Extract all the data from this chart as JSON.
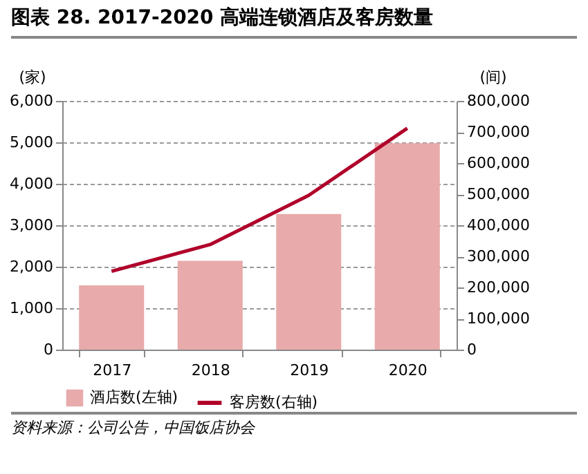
{
  "chart_data": {
    "type": "bar",
    "title": "图表 28. 2017-2020 高端连锁酒店及客房数量",
    "categories": [
      "2017",
      "2018",
      "2019",
      "2020"
    ],
    "series": [
      {
        "name": "酒店数(左轴)",
        "color": "#e8aaaa",
        "values": [
          1550,
          2140,
          3270,
          4980
        ]
      },
      {
        "name": "客房数(右轴)",
        "type": "line",
        "axis": "y2",
        "color": "#b0002a",
        "values": [
          252000,
          338000,
          496000,
          712000
        ]
      }
    ],
    "ylabel": "(家)",
    "y2label": "(间)",
    "ylim": [
      0,
      6000
    ],
    "yticks": [
      0,
      {
        "value": 1000,
        "label": "1,000"
      },
      {
        "value": 2000,
        "label": "2,000"
      },
      {
        "value": 3000,
        "label": "3,000"
      },
      {
        "value": 4000,
        "label": "4,000"
      },
      {
        "value": 5000,
        "label": "5,000"
      },
      {
        "value": 6000,
        "label": "6,000"
      }
    ],
    "y2lim": [
      0,
      800000
    ],
    "y2ticks": [
      0,
      {
        "value": 100000,
        "label": "100,000"
      },
      {
        "value": 200000,
        "label": "200,000"
      },
      {
        "value": 300000,
        "label": "300,000"
      },
      {
        "value": 400000,
        "label": "400,000"
      },
      {
        "value": 500000,
        "label": "500,000"
      },
      {
        "value": 600000,
        "label": "600,000"
      },
      {
        "value": 700000,
        "label": "700,000"
      },
      {
        "value": 800000,
        "label": "800,000"
      }
    ],
    "grid": "y",
    "legend": "bottom",
    "annotations": [
      "资料来源：公司公告，中国饭店协会"
    ]
  }
}
